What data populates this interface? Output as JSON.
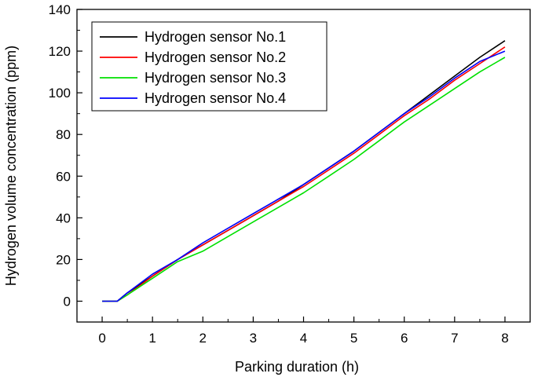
{
  "chart_data": {
    "type": "line",
    "title": "",
    "xlabel": "Parking duration (h)",
    "ylabel": "Hydrogen volume concentration (ppm)",
    "xlim": [
      -0.5,
      8.5
    ],
    "ylim": [
      -10,
      140
    ],
    "xticks": [
      0,
      1,
      2,
      3,
      4,
      5,
      6,
      7,
      8
    ],
    "yticks": [
      0,
      20,
      40,
      60,
      80,
      100,
      120,
      140
    ],
    "grid": false,
    "legend": "top-left",
    "series": [
      {
        "name": "Hydrogen sensor No.1",
        "color": "#000000",
        "x": [
          0,
          0.3,
          0.5,
          1.0,
          1.5,
          2.0,
          2.5,
          3.0,
          3.5,
          4.0,
          4.5,
          5.0,
          5.5,
          6.0,
          6.5,
          7.0,
          7.5,
          8.0
        ],
        "y": [
          0,
          0,
          4,
          12,
          20,
          27,
          34,
          41,
          48,
          56,
          64,
          72,
          81,
          90,
          99,
          108,
          117,
          125
        ]
      },
      {
        "name": "Hydrogen sensor No.2",
        "color": "#ff0000",
        "x": [
          0,
          0.3,
          0.5,
          1.0,
          1.5,
          2.0,
          2.5,
          3.0,
          3.5,
          4.0,
          4.5,
          5.0,
          5.5,
          6.0,
          6.5,
          7.0,
          7.5,
          8.0
        ],
        "y": [
          0,
          0,
          3,
          12,
          20,
          27,
          34,
          41,
          48,
          55,
          63,
          71,
          80,
          89,
          97,
          106,
          114,
          122
        ]
      },
      {
        "name": "Hydrogen sensor No.3",
        "color": "#00e000",
        "x": [
          0,
          0.3,
          0.5,
          1.0,
          1.5,
          2.0,
          2.5,
          3.0,
          3.5,
          4.0,
          4.5,
          5.0,
          5.5,
          6.0,
          6.5,
          7.0,
          7.5,
          8.0
        ],
        "y": [
          0,
          0,
          3,
          11,
          19,
          24,
          31,
          38,
          45,
          52,
          60,
          68,
          77,
          86,
          94,
          102,
          110,
          117
        ]
      },
      {
        "name": "Hydrogen sensor No.4",
        "color": "#0000ff",
        "x": [
          0,
          0.3,
          0.5,
          1.0,
          1.5,
          2.0,
          2.5,
          3.0,
          3.5,
          4.0,
          4.5,
          5.0,
          5.5,
          6.0,
          6.5,
          7.0,
          7.5,
          8.0
        ],
        "y": [
          0,
          0,
          4,
          13,
          20,
          28,
          35,
          42,
          49,
          56,
          64,
          72,
          81,
          90,
          98,
          107,
          115,
          120
        ]
      }
    ]
  }
}
